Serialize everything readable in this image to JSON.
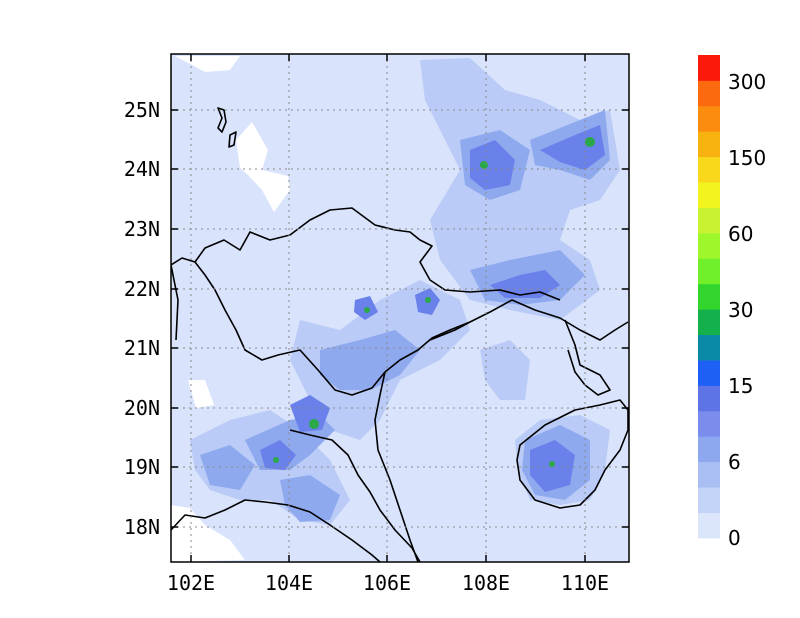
{
  "map": {
    "x_ticks": [
      "102E",
      "104E",
      "106E",
      "108E",
      "110E"
    ],
    "y_ticks": [
      "18N",
      "19N",
      "20N",
      "21N",
      "22N",
      "23N",
      "24N",
      "25N"
    ],
    "lon_values": [
      102,
      104,
      106,
      108,
      110
    ],
    "lat_values": [
      18,
      19,
      20,
      21,
      22,
      23,
      24,
      25
    ],
    "extent": {
      "lon": [
        101.6,
        110.8
      ],
      "lat": [
        17.4,
        25.9
      ]
    },
    "gridlines": "dotted",
    "background_level_color": "#d9e3fb"
  },
  "colorbar": {
    "levels_shown": [
      "0",
      "6",
      "15",
      "30",
      "60",
      "150",
      "300"
    ],
    "colors": [
      "#dbe6fb",
      "#c4d3f8",
      "#a9bff4",
      "#8ea8ef",
      "#7a8ded",
      "#5d73e6",
      "#1e60f5",
      "#0b8aa8",
      "#14b04c",
      "#31d52c",
      "#6ff02a",
      "#9ef72b",
      "#c9f332",
      "#f1f41f",
      "#f9d81c",
      "#f7b20f",
      "#fb8c0f",
      "#fb6a0f",
      "#fb1a0a"
    ]
  },
  "icons": {
    "colorbar": "color-scale-icon",
    "map": "precipitation-map-icon"
  }
}
